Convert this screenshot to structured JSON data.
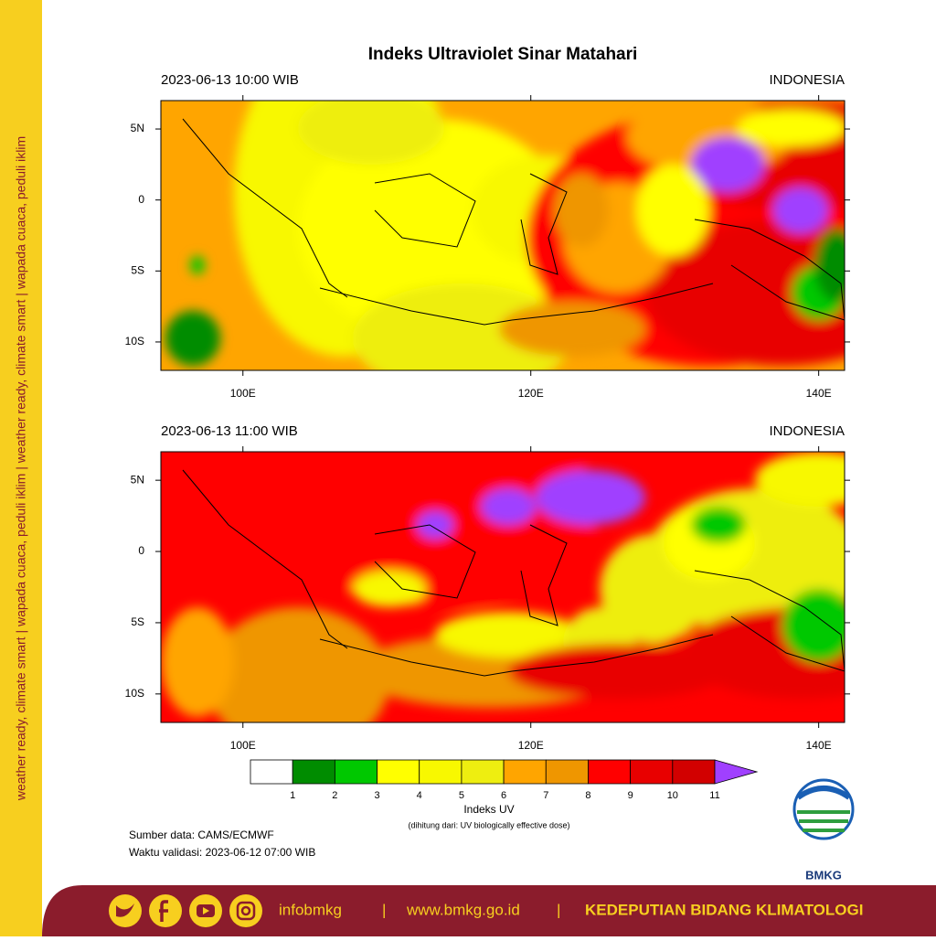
{
  "side_text": "weather ready, climate smart | wapada cuaca, peduli iklim | weather ready, climate smart | wapada cuaca, peduli iklim",
  "title": "Indeks Ultraviolet Sinar Matahari",
  "panels": [
    {
      "time": "2023-06-13  10:00 WIB",
      "region": "INDONESIA"
    },
    {
      "time": "2023-06-13  11:00 WIB",
      "region": "INDONESIA"
    }
  ],
  "lon_lim": [
    94.3,
    141.8
  ],
  "lat_lim": [
    -12,
    7
  ],
  "lon_ticks": [
    {
      "value": 100,
      "label": "100E"
    },
    {
      "value": 120,
      "label": "120E"
    },
    {
      "value": 140,
      "label": "140E"
    }
  ],
  "lat_ticks": [
    {
      "value": 5,
      "label": "5N"
    },
    {
      "value": 0,
      "label": "0"
    },
    {
      "value": -5,
      "label": "5S"
    },
    {
      "value": -10,
      "label": "10S"
    }
  ],
  "colorbar": {
    "ticks": [
      1,
      2,
      3,
      4,
      5,
      6,
      7,
      8,
      9,
      10,
      11
    ],
    "colors": [
      "#ffffff",
      "#008c00",
      "#00c800",
      "#ffff00",
      "#f8f800",
      "#eeee10",
      "#ffa500",
      "#ef9600",
      "#ff0000",
      "#e80000",
      "#d20000",
      "#a040ff"
    ],
    "label": "Indeks UV",
    "sublabel": "(dihitung dari: UV biologically effective dose)"
  },
  "source": "Sumber data: CAMS/ECMWF",
  "valid_time": "Waktu validasi: 2023-06-12 07:00 WIB",
  "logo_text": "BMKG",
  "footer": {
    "handle": "infobmkg",
    "separator": "|",
    "website": "www.bmkg.go.id",
    "department": "KEDEPUTIAN BIDANG KLIMATOLOGI"
  }
}
